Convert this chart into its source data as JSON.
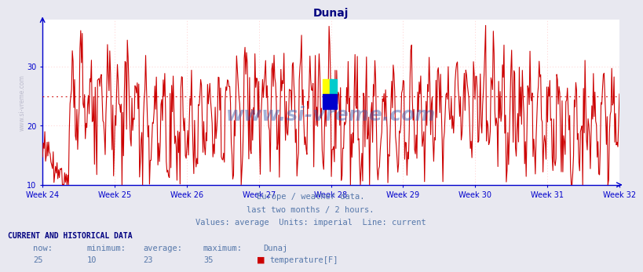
{
  "title": "Dunaj",
  "title_color": "#000080",
  "title_fontsize": 10,
  "ylabel_text": "www.si-vreme.com",
  "ylabel_color": "#bbbbcc",
  "xticklabels": [
    "Week 24",
    "Week 25",
    "Week 26",
    "Week 27",
    "Week 28",
    "Week 29",
    "Week 30",
    "Week 31",
    "Week 32"
  ],
  "ylim": [
    10,
    38
  ],
  "yticks": [
    10,
    20,
    30
  ],
  "yticklabels": [
    "10",
    "20",
    "30"
  ],
  "avg_line_y": 25,
  "avg_line_color": "#cc0000",
  "line_color": "#cc0000",
  "line_width": 0.8,
  "bg_color": "#e8e8f0",
  "plot_bg_color": "#ffffff",
  "grid_color": "#dddddd",
  "grid_color_dotted": "#ffcccc",
  "axis_color": "#0000cc",
  "tick_color": "#0000cc",
  "footer_lines": [
    "Europe / weather data.",
    "last two months / 2 hours.",
    "Values: average  Units: imperial  Line: current"
  ],
  "footer_color": "#5577aa",
  "footer_fontsize": 7.5,
  "current_label": "CURRENT AND HISTORICAL DATA",
  "current_label_color": "#000080",
  "current_label_fontsize": 7,
  "table_headers": [
    "now:",
    "minimum:",
    "average:",
    "maximum:",
    "Dunaj"
  ],
  "table_values": [
    "25",
    "10",
    "23",
    "35"
  ],
  "table_series": "temperature[F]",
  "table_color": "#5577aa",
  "table_fontsize": 7.5,
  "legend_color": "#cc0000",
  "logo_colors": [
    "#ffff00",
    "#00cccc",
    "#0000cc",
    "#0000cc"
  ],
  "watermark_text": "www.si-vreme.com",
  "watermark_color": "#3355aa",
  "watermark_alpha": 0.45,
  "watermark_fontsize": 18
}
